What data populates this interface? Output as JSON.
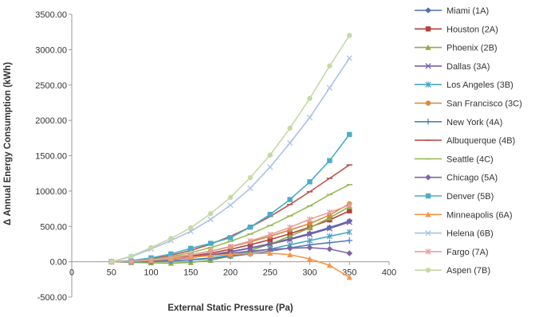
{
  "chart_data": {
    "type": "line",
    "title": "",
    "xlabel": "External Static Pressure (Pa)",
    "ylabel": "Δ Annual Energy Consumption (kWh)",
    "xlim": [
      0,
      400
    ],
    "ylim": [
      -500,
      3500
    ],
    "xticks": [
      0,
      50,
      100,
      150,
      200,
      250,
      300,
      350,
      400
    ],
    "yticks": [
      -500,
      0,
      500,
      1000,
      1500,
      2000,
      2500,
      3000,
      3500
    ],
    "xtick_labels": [
      "0",
      "50",
      "100",
      "150",
      "200",
      "250",
      "300",
      "350",
      "400"
    ],
    "ytick_labels": [
      "-500.00",
      "0.00",
      "500.00",
      "1000.00",
      "1500.00",
      "2000.00",
      "2500.00",
      "3000.00",
      "3500.00"
    ],
    "grid": false,
    "legend_position": "right",
    "x": [
      50,
      75,
      100,
      125,
      150,
      175,
      200,
      225,
      250,
      275,
      300,
      325,
      350
    ],
    "series": [
      {
        "name": "Miami (1A)",
        "color": "#4f6db0",
        "marker": "diamond",
        "values": [
          0,
          4,
          16,
          36,
          64,
          100,
          145,
          196,
          256,
          324,
          400,
          484,
          576
        ]
      },
      {
        "name": "Houston (2A)",
        "color": "#b5403e",
        "marker": "square",
        "values": [
          0,
          5,
          20,
          44,
          78,
          122,
          176,
          240,
          313,
          396,
          489,
          592,
          720
        ]
      },
      {
        "name": "Phoenix (2B)",
        "color": "#8fae48",
        "marker": "triangle",
        "values": [
          0,
          -10,
          -15,
          -20,
          -10,
          20,
          80,
          160,
          250,
          360,
          480,
          620,
          780
        ]
      },
      {
        "name": "Dallas (3A)",
        "color": "#7a5ea8",
        "marker": "x",
        "values": [
          0,
          4,
          16,
          35,
          62,
          97,
          140,
          190,
          248,
          314,
          388,
          470,
          560
        ]
      },
      {
        "name": "Los Angeles (3B)",
        "color": "#46a6c2",
        "marker": "asterisk",
        "values": [
          0,
          0,
          5,
          15,
          30,
          55,
          90,
          130,
          180,
          240,
          300,
          360,
          420
        ]
      },
      {
        "name": "San Francisco (3C)",
        "color": "#d8893b",
        "marker": "circle",
        "values": [
          0,
          8,
          28,
          60,
          100,
          150,
          210,
          280,
          360,
          450,
          540,
          660,
          820
        ]
      },
      {
        "name": "New York (4A)",
        "color": "#4f7fbd",
        "marker": "plus",
        "values": [
          0,
          0,
          5,
          12,
          25,
          45,
          75,
          110,
          150,
          195,
          240,
          270,
          300
        ]
      },
      {
        "name": "Albuquerque (4B)",
        "color": "#c0504d",
        "marker": "dash",
        "values": [
          0,
          10,
          40,
          90,
          160,
          250,
          360,
          490,
          640,
          810,
          990,
          1180,
          1370
        ]
      },
      {
        "name": "Seattle (4C)",
        "color": "#9bbb59",
        "marker": "dash",
        "values": [
          0,
          8,
          32,
          72,
          128,
          200,
          288,
          392,
          512,
          648,
          790,
          950,
          1090
        ]
      },
      {
        "name": "Chicago (5A)",
        "color": "#8064a2",
        "marker": "diamond",
        "values": [
          0,
          5,
          15,
          35,
          60,
          90,
          120,
          150,
          175,
          190,
          200,
          180,
          120
        ]
      },
      {
        "name": "Denver (5B)",
        "color": "#4bacc6",
        "marker": "square",
        "values": [
          0,
          15,
          55,
          110,
          190,
          260,
          340,
          490,
          670,
          880,
          1130,
          1430,
          1800
        ]
      },
      {
        "name": "Minneapolis (6A)",
        "color": "#f79646",
        "marker": "triangle",
        "values": [
          0,
          5,
          20,
          40,
          65,
          85,
          105,
          115,
          120,
          100,
          40,
          -50,
          -220
        ]
      },
      {
        "name": "Helena (6B)",
        "color": "#a9c0e8",
        "marker": "x",
        "values": [
          0,
          70,
          180,
          300,
          430,
          600,
          800,
          1040,
          1340,
          1680,
          2040,
          2460,
          2880
        ]
      },
      {
        "name": "Fargo (7A)",
        "color": "#e6a0a0",
        "marker": "asterisk",
        "values": [
          0,
          6,
          24,
          54,
          96,
          150,
          216,
          294,
          384,
          486,
          600,
          700,
          800
        ]
      },
      {
        "name": "Aspen (7B)",
        "color": "#c6d9a5",
        "marker": "circle",
        "values": [
          0,
          80,
          200,
          330,
          480,
          680,
          910,
          1190,
          1510,
          1890,
          2310,
          2770,
          3200
        ]
      }
    ]
  }
}
